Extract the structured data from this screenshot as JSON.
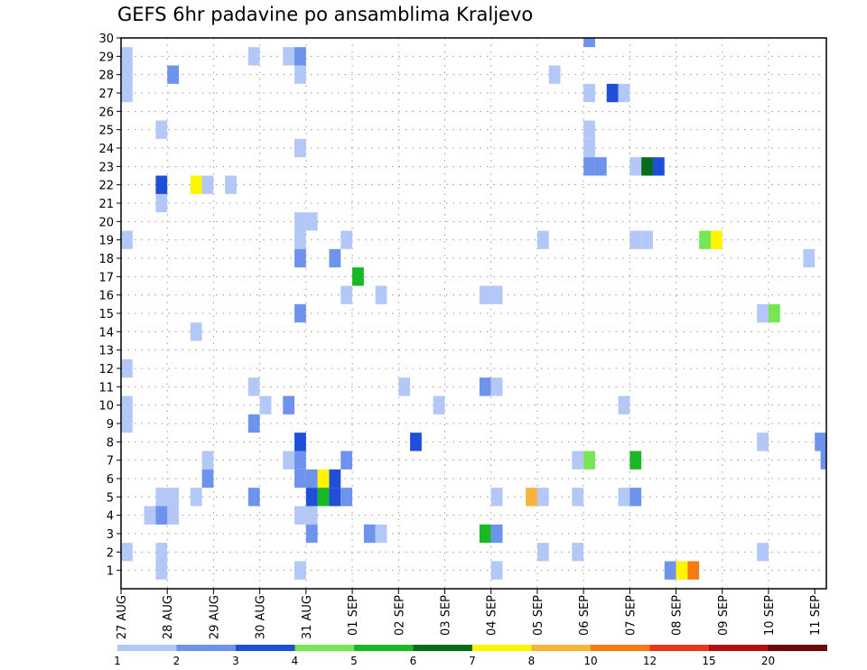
{
  "chart_data": {
    "type": "heatmap",
    "title": "GEFS 6hr padavine po ansamblima Kraljevo",
    "xlabel": "",
    "ylabel": "",
    "x_ticks": [
      "27 AUG",
      "28 AUG",
      "29 AUG",
      "30 AUG",
      "31 AUG",
      "01 SEP",
      "02 SEP",
      "03 SEP",
      "04 SEP",
      "05 SEP",
      "06 SEP",
      "07 SEP",
      "08 SEP",
      "09 SEP",
      "10 SEP",
      "11 SEP"
    ],
    "y_ticks": [
      1,
      2,
      3,
      4,
      5,
      6,
      7,
      8,
      9,
      10,
      11,
      12,
      13,
      14,
      15,
      16,
      17,
      18,
      19,
      20,
      21,
      22,
      23,
      24,
      25,
      26,
      27,
      28,
      29,
      30
    ],
    "x_range_steps": [
      0,
      61
    ],
    "y_range": [
      0,
      30
    ],
    "grid": true,
    "legend_placement": "bottom",
    "colorbar": {
      "labels": [
        "1",
        "2",
        "3",
        "4",
        "5",
        "6",
        "7",
        "8",
        "10",
        "12",
        "15",
        "20"
      ],
      "colors": [
        "#b3c8f6",
        "#6e93ec",
        "#1f4fd8",
        "#78e654",
        "#1ab825",
        "#0a6b18",
        "#fff500",
        "#f8b43a",
        "#f57a14",
        "#e8361a",
        "#b01010",
        "#6b0a0a"
      ]
    },
    "cells": [
      [
        0.5,
        1,
        29
      ],
      [
        0.5,
        1,
        28
      ],
      [
        0.5,
        1,
        27
      ],
      [
        0.5,
        1,
        19
      ],
      [
        0.5,
        1,
        12
      ],
      [
        0.5,
        1,
        10
      ],
      [
        0.5,
        1,
        9
      ],
      [
        0.5,
        1,
        2
      ],
      [
        2.5,
        1,
        4
      ],
      [
        3.5,
        1,
        5
      ],
      [
        3.5,
        1,
        4
      ],
      [
        3.5,
        1,
        2
      ],
      [
        3.5,
        1,
        1
      ],
      [
        3.5,
        1,
        25
      ],
      [
        3.5,
        1,
        21
      ],
      [
        4.5,
        2,
        28
      ],
      [
        4.5,
        1,
        5
      ],
      [
        4.5,
        1,
        4
      ],
      [
        3.5,
        3,
        22
      ],
      [
        3.5,
        2,
        4
      ],
      [
        6.5,
        7,
        22
      ],
      [
        6.5,
        1,
        14
      ],
      [
        6.5,
        1,
        5
      ],
      [
        7.5,
        1,
        22
      ],
      [
        7.5,
        1,
        7
      ],
      [
        7.5,
        2,
        6
      ],
      [
        9.5,
        1,
        22
      ],
      [
        11.5,
        1,
        29
      ],
      [
        11.5,
        1,
        11
      ],
      [
        11.5,
        2,
        9
      ],
      [
        11.5,
        2,
        5
      ],
      [
        12.5,
        1,
        10
      ],
      [
        14.5,
        1,
        29
      ],
      [
        14.5,
        2,
        10
      ],
      [
        14.5,
        1,
        7
      ],
      [
        15.5,
        2,
        29
      ],
      [
        15.5,
        1,
        28
      ],
      [
        15.5,
        1,
        24
      ],
      [
        15.5,
        1,
        20
      ],
      [
        15.5,
        1,
        19
      ],
      [
        15.5,
        2,
        18
      ],
      [
        15.5,
        2,
        15
      ],
      [
        15.5,
        1,
        4
      ],
      [
        15.5,
        3,
        8
      ],
      [
        15.5,
        2,
        7
      ],
      [
        15.5,
        2,
        6
      ],
      [
        15.5,
        1,
        1
      ],
      [
        16.5,
        1,
        20
      ],
      [
        16.5,
        1,
        4
      ],
      [
        16.5,
        2,
        6
      ],
      [
        16.5,
        2,
        3
      ],
      [
        16.5,
        3,
        5
      ],
      [
        17.5,
        7,
        6
      ],
      [
        17.5,
        5,
        5
      ],
      [
        18.5,
        2,
        18
      ],
      [
        18.5,
        3,
        6
      ],
      [
        18.5,
        3,
        5
      ],
      [
        19.5,
        1,
        16
      ],
      [
        19.5,
        1,
        19
      ],
      [
        19.5,
        2,
        7
      ],
      [
        19.5,
        2,
        5
      ],
      [
        20.5,
        5,
        17
      ],
      [
        21.5,
        2,
        3
      ],
      [
        22.5,
        1,
        16
      ],
      [
        22.5,
        1,
        3
      ],
      [
        24.5,
        1,
        11
      ],
      [
        25.5,
        3,
        8
      ],
      [
        27.5,
        1,
        10
      ],
      [
        31.5,
        1,
        16
      ],
      [
        31.5,
        2,
        11
      ],
      [
        31.5,
        5,
        3
      ],
      [
        32.5,
        1,
        16
      ],
      [
        32.5,
        1,
        11
      ],
      [
        32.5,
        1,
        5
      ],
      [
        32.5,
        2,
        3
      ],
      [
        32.5,
        1,
        1
      ],
      [
        35.5,
        8,
        5
      ],
      [
        36.5,
        1,
        19
      ],
      [
        36.5,
        1,
        5
      ],
      [
        36.5,
        1,
        2
      ],
      [
        37.5,
        1,
        28
      ],
      [
        39.5,
        1,
        7
      ],
      [
        39.5,
        1,
        5
      ],
      [
        39.5,
        1,
        2
      ],
      [
        40.5,
        2,
        30
      ],
      [
        40.5,
        1,
        27
      ],
      [
        40.5,
        1,
        25
      ],
      [
        40.5,
        1,
        24
      ],
      [
        40.5,
        2,
        23
      ],
      [
        40.5,
        4,
        7
      ],
      [
        41.5,
        2,
        23
      ],
      [
        42.5,
        3,
        27
      ],
      [
        43.5,
        1,
        27
      ],
      [
        43.5,
        1,
        10
      ],
      [
        43.5,
        1,
        5
      ],
      [
        44.5,
        1,
        23
      ],
      [
        44.5,
        1,
        19
      ],
      [
        44.5,
        5,
        7
      ],
      [
        44.5,
        2,
        5
      ],
      [
        45.5,
        6,
        23
      ],
      [
        45.5,
        1,
        19
      ],
      [
        46.5,
        3,
        23
      ],
      [
        47.5,
        2,
        1
      ],
      [
        48.5,
        7,
        1
      ],
      [
        49.5,
        9,
        1
      ],
      [
        50.5,
        4,
        19
      ],
      [
        51.5,
        7,
        19
      ],
      [
        55.5,
        1,
        15
      ],
      [
        55.5,
        1,
        8
      ],
      [
        55.5,
        1,
        2
      ],
      [
        56.5,
        4,
        15
      ],
      [
        59.5,
        1,
        18
      ],
      [
        60.5,
        2,
        8
      ],
      [
        61.0,
        2,
        7
      ]
    ]
  }
}
